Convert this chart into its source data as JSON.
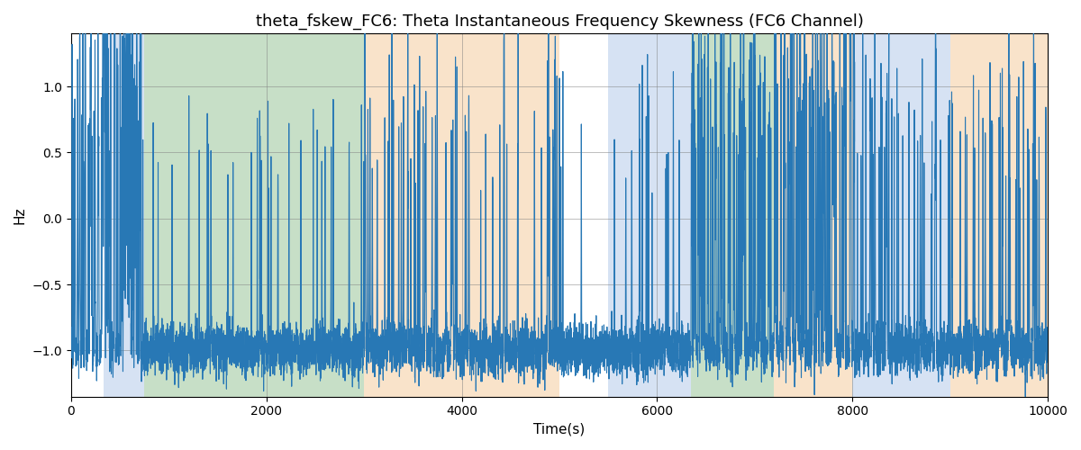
{
  "title": "theta_fskew_FC6: Theta Instantaneous Frequency Skewness (FC6 Channel)",
  "xlabel": "Time(s)",
  "ylabel": "Hz",
  "xlim": [
    0,
    10000
  ],
  "ylim": [
    -1.35,
    1.4
  ],
  "line_color": "#2878b5",
  "line_width": 0.8,
  "bands": [
    {
      "xmin": 330,
      "xmax": 750,
      "color": "#aec6e8",
      "alpha": 0.5
    },
    {
      "xmin": 750,
      "xmax": 3000,
      "color": "#90c090",
      "alpha": 0.5
    },
    {
      "xmin": 3000,
      "xmax": 5000,
      "color": "#f5c896",
      "alpha": 0.5
    },
    {
      "xmin": 5500,
      "xmax": 6100,
      "color": "#aec6e8",
      "alpha": 0.5
    },
    {
      "xmin": 6100,
      "xmax": 6350,
      "color": "#aec6e8",
      "alpha": 0.5
    },
    {
      "xmin": 6350,
      "xmax": 7200,
      "color": "#90c090",
      "alpha": 0.5
    },
    {
      "xmin": 7200,
      "xmax": 8000,
      "color": "#f5c896",
      "alpha": 0.5
    },
    {
      "xmin": 8000,
      "xmax": 9000,
      "color": "#aec6e8",
      "alpha": 0.5
    },
    {
      "xmin": 9000,
      "xmax": 10000,
      "color": "#f5c896",
      "alpha": 0.5
    }
  ],
  "seed": 42,
  "n_points": 10000,
  "title_fontsize": 13,
  "axis_fontsize": 11
}
